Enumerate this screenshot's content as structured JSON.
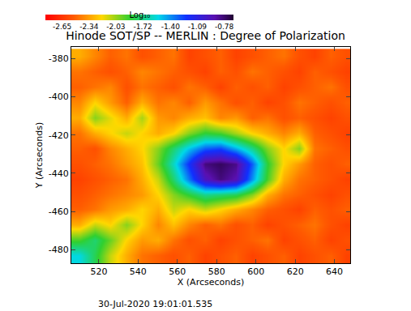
{
  "chart_data": {
    "type": "heatmap",
    "title": "Hinode SOT/SP -- MERLIN : Degree of Polarization",
    "x_label": "X (Arcseconds)",
    "y_label": "Y (Arcseconds)",
    "annotation": "30-Jul-2020 19:01:01.535",
    "x": [
      510,
      518,
      526,
      534,
      542,
      550,
      558,
      566,
      574,
      582,
      590,
      598,
      606,
      614,
      622,
      630,
      638,
      646
    ],
    "y": [
      -483,
      -475,
      -467,
      -459,
      -451,
      -443,
      -435,
      -427,
      -419,
      -411,
      -403,
      -395,
      -387,
      -379
    ],
    "z": [
      [
        -1.55,
        -1.8,
        -2.1,
        -2.3,
        -2.45,
        -2.5,
        -2.55,
        -2.5,
        -2.6,
        -2.55,
        -2.5,
        -2.6,
        -2.55,
        -2.5,
        -2.6,
        -2.55,
        -2.5,
        -2.6
      ],
      [
        -1.9,
        -1.75,
        -1.95,
        -2.2,
        -2.35,
        -2.3,
        -2.45,
        -2.55,
        -2.5,
        -2.6,
        -2.55,
        -2.5,
        -2.45,
        -2.6,
        -2.55,
        -2.5,
        -2.6,
        -2.55
      ],
      [
        -2.3,
        -2.1,
        -2.2,
        -2.0,
        -2.2,
        -2.4,
        -2.25,
        -2.4,
        -2.5,
        -2.45,
        -2.55,
        -2.5,
        -2.6,
        -2.55,
        -2.5,
        -2.45,
        -2.55,
        -2.6
      ],
      [
        -2.5,
        -2.45,
        -2.35,
        -2.3,
        -2.2,
        -2.3,
        -2.1,
        -2.2,
        -2.1,
        -2.2,
        -2.3,
        -2.4,
        -2.5,
        -2.55,
        -2.6,
        -2.5,
        -2.55,
        -2.5
      ],
      [
        -2.55,
        -2.5,
        -2.45,
        -2.4,
        -2.35,
        -2.2,
        -2.0,
        -1.85,
        -1.7,
        -1.75,
        -1.8,
        -2.0,
        -2.3,
        -2.45,
        -2.5,
        -2.55,
        -2.6,
        -2.55
      ],
      [
        -2.6,
        -2.55,
        -2.5,
        -2.45,
        -2.3,
        -2.1,
        -1.75,
        -1.35,
        -0.95,
        -0.8,
        -0.9,
        -1.4,
        -1.9,
        -2.3,
        -2.45,
        -2.5,
        -2.55,
        -2.6
      ],
      [
        -2.55,
        -2.5,
        -2.45,
        -2.35,
        -2.25,
        -1.95,
        -1.6,
        -1.2,
        -0.8,
        -0.75,
        -0.82,
        -1.3,
        -1.85,
        -2.2,
        -2.35,
        -2.5,
        -2.55,
        -2.5
      ],
      [
        -2.5,
        -2.55,
        -2.4,
        -2.3,
        -2.2,
        -2.0,
        -1.75,
        -1.5,
        -1.3,
        -1.25,
        -1.45,
        -1.7,
        -2.0,
        -2.2,
        -2.0,
        -2.45,
        -2.5,
        -2.55
      ],
      [
        -2.45,
        -2.3,
        -2.2,
        -2.1,
        -2.2,
        -2.3,
        -2.2,
        -2.0,
        -1.85,
        -1.9,
        -2.05,
        -2.2,
        -2.3,
        -2.4,
        -2.3,
        -2.5,
        -2.55,
        -2.6
      ],
      [
        -2.3,
        -2.0,
        -2.15,
        -2.3,
        -2.05,
        -2.35,
        -2.4,
        -2.3,
        -2.25,
        -2.4,
        -2.35,
        -2.5,
        -2.45,
        -2.55,
        -2.5,
        -2.55,
        -2.6,
        -2.55
      ],
      [
        -2.4,
        -2.2,
        -2.35,
        -2.5,
        -2.3,
        -2.45,
        -2.4,
        -2.5,
        -2.35,
        -2.45,
        -2.55,
        -2.5,
        -2.6,
        -2.55,
        -2.45,
        -2.5,
        -2.55,
        -2.5
      ],
      [
        -2.5,
        -2.45,
        -2.4,
        -2.55,
        -2.45,
        -2.5,
        -2.55,
        -2.45,
        -2.5,
        -2.6,
        -2.5,
        -2.55,
        -2.5,
        -2.6,
        -2.55,
        -2.5,
        -2.45,
        -2.55
      ],
      [
        -2.45,
        -2.5,
        -2.55,
        -2.5,
        -2.4,
        -2.45,
        -2.5,
        -2.55,
        -2.6,
        -2.5,
        -2.55,
        -2.45,
        -2.5,
        -2.55,
        -2.6,
        -2.5,
        -2.55,
        -2.6
      ],
      [
        -2.3,
        -2.4,
        -2.5,
        -2.45,
        -2.55,
        -2.5,
        -2.45,
        -2.6,
        -2.55,
        -2.5,
        -2.6,
        -2.55,
        -2.5,
        -2.45,
        -2.55,
        -2.6,
        -2.5,
        -2.55
      ]
    ],
    "xlim": [
      506,
      648
    ],
    "ylim": [
      -487,
      -374
    ],
    "xticks": [
      520,
      540,
      560,
      580,
      600,
      620,
      640
    ],
    "yticks": [
      -480,
      -460,
      -440,
      -420,
      -400,
      -380
    ],
    "colorbar": {
      "title": "Log₁₀",
      "zlim": [
        -2.84,
        -0.67
      ],
      "ticks": [
        -2.65,
        -2.34,
        -2.03,
        -1.72,
        {
          "value": -1.4,
          "label": "-1.40"
        },
        -1.09,
        -0.78
      ]
    }
  }
}
